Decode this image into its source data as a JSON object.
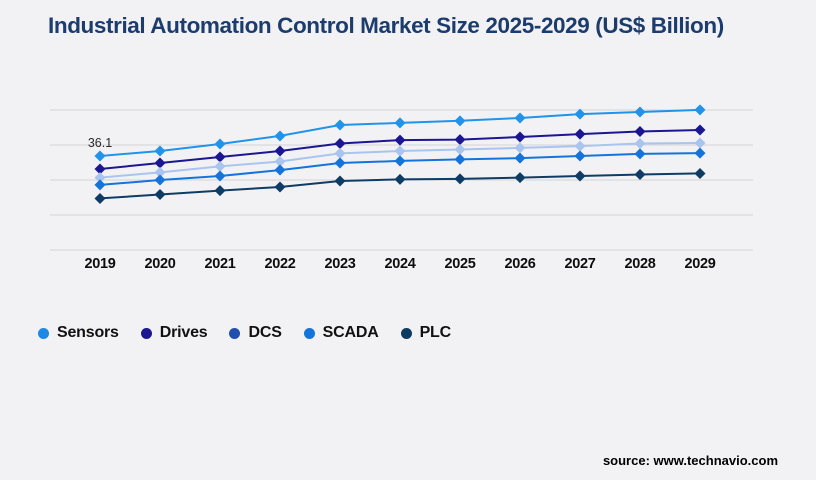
{
  "page": {
    "background": "#f2f2f4"
  },
  "header": {
    "title": "Industrial Automation Control Market Size 2025-2029 (US$ Billion)",
    "title_color": "#1b3c6d"
  },
  "chart_data": {
    "type": "line",
    "title": "Industrial Automation Control Market Size 2025-2029 (US$ Billion)",
    "x": [
      2019,
      2020,
      2021,
      2022,
      2023,
      2024,
      2025,
      2026,
      2027,
      2028,
      2029
    ],
    "xlabel": "",
    "ylabel": "US$ Billion",
    "ylim": [
      0,
      60
    ],
    "grid": true,
    "gridline_color": "#d4d4d8",
    "legend_position": "bottom-left",
    "marker_shape": "diamond",
    "series": [
      {
        "name": "Sensors",
        "color": "#2193ea",
        "legend_color": "#1e88e5",
        "values": [
          36.1,
          38.0,
          40.7,
          43.8,
          48.0,
          48.8,
          49.6,
          50.7,
          52.2,
          53.0,
          53.8
        ]
      },
      {
        "name": "Drives",
        "color": "#1b1692",
        "legend_color": "#1b1692",
        "values": [
          31.1,
          33.4,
          35.7,
          38.0,
          40.9,
          42.2,
          42.4,
          43.4,
          44.5,
          45.5,
          46.1
        ]
      },
      {
        "name": "DCS",
        "color": "#aac4f0",
        "legend_color": "#2050b0",
        "values": [
          27.8,
          29.8,
          32.1,
          34.0,
          37.1,
          38.0,
          38.6,
          39.2,
          39.9,
          40.9,
          41.1
        ]
      },
      {
        "name": "SCADA",
        "color": "#1474dc",
        "legend_color": "#1474dc",
        "values": [
          25.0,
          26.9,
          28.4,
          30.7,
          33.4,
          34.2,
          34.8,
          35.3,
          36.1,
          36.9,
          37.2
        ]
      },
      {
        "name": "PLC",
        "color": "#0e3c64",
        "legend_color": "#0d3a60",
        "values": [
          19.8,
          21.3,
          22.8,
          24.2,
          26.5,
          27.1,
          27.3,
          27.8,
          28.4,
          29.0,
          29.4
        ]
      }
    ],
    "annotation": {
      "text": "36.1",
      "series": "Sensors",
      "x": 2019
    }
  },
  "footer": {
    "source": "source: www.technavio.com"
  }
}
